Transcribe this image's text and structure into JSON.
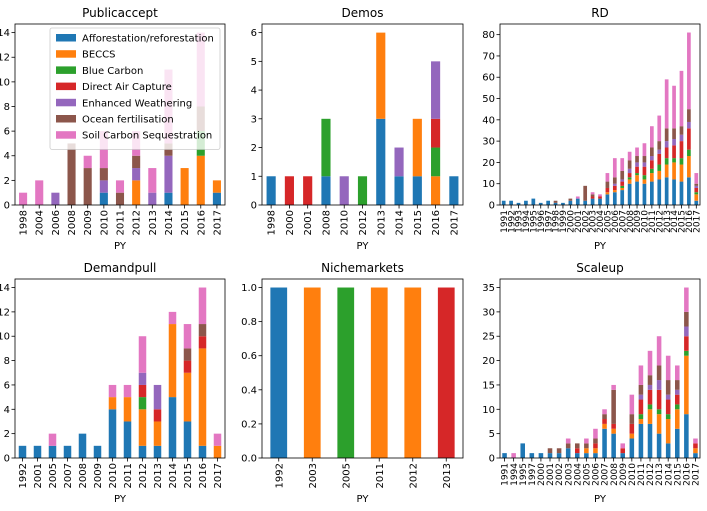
{
  "colors": {
    "Afforestation/reforestation": "#1f77b4",
    "BECCS": "#ff7f0e",
    "Blue Carbon": "#2ca02c",
    "Direct Air Capture": "#d62728",
    "Enhanced Weathering": "#9467bd",
    "Ocean fertilisation": "#8c564b",
    "Soil Carbon Sequestration": "#e377c2"
  },
  "chart_data": [
    {
      "type": "bar",
      "stacked": true,
      "title": "Publicaccept",
      "xlabel": "PY",
      "ylabel": "",
      "ylim": [
        0,
        14.7
      ],
      "yticks": [
        0,
        2,
        4,
        6,
        8,
        10,
        12,
        14
      ],
      "legend": "upper-right",
      "categories": [
        "1998",
        "2004",
        "2006",
        "2008",
        "2009",
        "2010",
        "2011",
        "2012",
        "2013",
        "2014",
        "2015",
        "2016",
        "2017"
      ],
      "series": [
        {
          "name": "Afforestation/reforestation",
          "values": [
            0,
            0,
            0,
            0,
            0,
            1,
            0,
            0,
            0,
            1,
            0,
            0,
            1
          ]
        },
        {
          "name": "BECCS",
          "values": [
            0,
            0,
            0,
            0,
            0,
            0,
            0,
            2,
            0,
            0,
            3,
            4,
            1
          ]
        },
        {
          "name": "Blue Carbon",
          "values": [
            0,
            0,
            0,
            0,
            0,
            0,
            0,
            0,
            0,
            0,
            0,
            2,
            0
          ]
        },
        {
          "name": "Direct Air Capture",
          "values": [
            0,
            0,
            0,
            0,
            0,
            0,
            0,
            0,
            0,
            0,
            0,
            0,
            0
          ]
        },
        {
          "name": "Enhanced Weathering",
          "values": [
            0,
            0,
            1,
            0,
            0,
            1,
            0,
            1,
            1,
            3,
            0,
            0,
            0
          ]
        },
        {
          "name": "Ocean fertilisation",
          "values": [
            0,
            0,
            0,
            5,
            3,
            1,
            1,
            1,
            0,
            1,
            0,
            2,
            0
          ]
        },
        {
          "name": "Soil Carbon Sequestration",
          "values": [
            1,
            2,
            0,
            0,
            1,
            3,
            1,
            2,
            2,
            6,
            0,
            6,
            0
          ]
        }
      ]
    },
    {
      "type": "bar",
      "stacked": true,
      "title": "Demos",
      "xlabel": "PY",
      "ylabel": "",
      "ylim": [
        0,
        6.3
      ],
      "yticks": [
        0,
        1,
        2,
        3,
        4,
        5,
        6
      ],
      "categories": [
        "1998",
        "2000",
        "2001",
        "2008",
        "2010",
        "2012",
        "2013",
        "2014",
        "2015",
        "2016",
        "2017"
      ],
      "series": [
        {
          "name": "Afforestation/reforestation",
          "values": [
            1,
            0,
            0,
            1,
            0,
            0,
            3,
            1,
            1,
            0,
            1
          ]
        },
        {
          "name": "BECCS",
          "values": [
            0,
            0,
            0,
            0,
            0,
            0,
            3,
            0,
            2,
            1,
            0
          ]
        },
        {
          "name": "Blue Carbon",
          "values": [
            0,
            0,
            0,
            2,
            0,
            1,
            0,
            0,
            0,
            1,
            0
          ]
        },
        {
          "name": "Direct Air Capture",
          "values": [
            0,
            1,
            1,
            0,
            0,
            0,
            0,
            0,
            0,
            1,
            0
          ]
        },
        {
          "name": "Enhanced Weathering",
          "values": [
            0,
            0,
            0,
            0,
            1,
            0,
            0,
            1,
            0,
            2,
            0
          ]
        },
        {
          "name": "Ocean fertilisation",
          "values": [
            0,
            0,
            0,
            0,
            0,
            0,
            0,
            0,
            0,
            0,
            0
          ]
        },
        {
          "name": "Soil Carbon Sequestration",
          "values": [
            0,
            0,
            0,
            0,
            0,
            0,
            0,
            0,
            0,
            0,
            0
          ]
        }
      ]
    },
    {
      "type": "bar",
      "stacked": true,
      "title": "RD",
      "xlabel": "PY",
      "ylabel": "",
      "ylim": [
        0,
        85
      ],
      "yticks": [
        0,
        10,
        20,
        30,
        40,
        50,
        60,
        70,
        80
      ],
      "categories": [
        "1991",
        "1992",
        "1993",
        "1994",
        "1995",
        "1996",
        "1997",
        "1998",
        "1999",
        "2000",
        "2001",
        "2002",
        "2003",
        "2004",
        "2005",
        "2006",
        "2007",
        "2008",
        "2009",
        "2010",
        "2011",
        "2012",
        "2013",
        "2014",
        "2015",
        "2016",
        "2017"
      ],
      "series": [
        {
          "name": "Afforestation/reforestation",
          "values": [
            2,
            2,
            1,
            2,
            3,
            1,
            2,
            1,
            1,
            2,
            3,
            2,
            3,
            3,
            5,
            6,
            7,
            10,
            11,
            10,
            11,
            12,
            13,
            12,
            11,
            13,
            2
          ]
        },
        {
          "name": "BECCS",
          "values": [
            0,
            0,
            0,
            0,
            0,
            0,
            0,
            0,
            0,
            0,
            0,
            0,
            0,
            0,
            1,
            1,
            1,
            2,
            3,
            2,
            4,
            4,
            6,
            8,
            8,
            10,
            3
          ]
        },
        {
          "name": "Blue Carbon",
          "values": [
            0,
            0,
            0,
            0,
            0,
            0,
            0,
            0,
            0,
            0,
            0,
            0,
            0,
            0,
            0,
            0,
            1,
            1,
            1,
            2,
            2,
            3,
            3,
            2,
            3,
            3,
            1
          ]
        },
        {
          "name": "Direct Air Capture",
          "values": [
            0,
            0,
            0,
            0,
            0,
            0,
            0,
            0,
            0,
            0,
            0,
            0,
            1,
            1,
            2,
            2,
            2,
            2,
            3,
            4,
            4,
            5,
            5,
            6,
            8,
            10,
            2
          ]
        },
        {
          "name": "Enhanced Weathering",
          "values": [
            0,
            0,
            0,
            0,
            0,
            0,
            0,
            0,
            0,
            0,
            0,
            0,
            0,
            0,
            0,
            1,
            1,
            2,
            2,
            2,
            2,
            2,
            3,
            3,
            3,
            3,
            1
          ]
        },
        {
          "name": "Ocean fertilisation",
          "values": [
            0,
            0,
            0,
            0,
            0,
            0,
            0,
            1,
            0,
            1,
            0,
            7,
            1,
            0,
            3,
            3,
            4,
            4,
            3,
            3,
            4,
            4,
            6,
            5,
            4,
            6,
            1
          ]
        },
        {
          "name": "Soil Carbon Sequestration",
          "values": [
            0,
            0,
            0,
            0,
            0,
            0,
            0,
            0,
            0,
            0,
            1,
            0,
            1,
            1,
            4,
            9,
            6,
            4,
            4,
            6,
            10,
            12,
            23,
            20,
            26,
            36,
            5
          ]
        }
      ]
    },
    {
      "type": "bar",
      "stacked": true,
      "title": "Demandpull",
      "xlabel": "PY",
      "ylabel": "",
      "ylim": [
        0,
        14.7
      ],
      "yticks": [
        0,
        2,
        4,
        6,
        8,
        10,
        12,
        14
      ],
      "categories": [
        "1992",
        "2001",
        "2005",
        "2007",
        "2008",
        "2009",
        "2010",
        "2011",
        "2012",
        "2013",
        "2014",
        "2015",
        "2016",
        "2017"
      ],
      "series": [
        {
          "name": "Afforestation/reforestation",
          "values": [
            1,
            1,
            1,
            1,
            2,
            1,
            4,
            3,
            1,
            1,
            5,
            3,
            1,
            0
          ]
        },
        {
          "name": "BECCS",
          "values": [
            0,
            0,
            0,
            0,
            0,
            0,
            1,
            2,
            3,
            2,
            6,
            4,
            8,
            1
          ]
        },
        {
          "name": "Blue Carbon",
          "values": [
            0,
            0,
            0,
            0,
            0,
            0,
            0,
            0,
            1,
            0,
            0,
            0,
            0,
            0
          ]
        },
        {
          "name": "Direct Air Capture",
          "values": [
            0,
            0,
            0,
            0,
            0,
            0,
            0,
            0,
            1,
            1,
            0,
            1,
            1,
            0
          ]
        },
        {
          "name": "Enhanced Weathering",
          "values": [
            0,
            0,
            0,
            0,
            0,
            0,
            0,
            0,
            1,
            2,
            0,
            0,
            0,
            0
          ]
        },
        {
          "name": "Ocean fertilisation",
          "values": [
            0,
            0,
            0,
            0,
            0,
            0,
            0,
            0,
            0,
            0,
            0,
            1,
            1,
            0
          ]
        },
        {
          "name": "Soil Carbon Sequestration",
          "values": [
            0,
            0,
            1,
            0,
            0,
            0,
            1,
            1,
            3,
            0,
            1,
            2,
            3,
            1
          ]
        }
      ]
    },
    {
      "type": "bar",
      "stacked": true,
      "title": "Nichemarkets",
      "xlabel": "PY",
      "ylabel": "",
      "ylim": [
        0,
        1.05
      ],
      "yticks": [
        0.0,
        0.2,
        0.4,
        0.6,
        0.8,
        1.0
      ],
      "tick_format": "0.0",
      "categories": [
        "1992",
        "2003",
        "2005",
        "2011",
        "2012",
        "2013"
      ],
      "series": [
        {
          "name": "Afforestation/reforestation",
          "values": [
            1,
            0,
            0,
            0,
            0,
            0
          ]
        },
        {
          "name": "BECCS",
          "values": [
            0,
            1,
            0,
            1,
            1,
            0
          ]
        },
        {
          "name": "Blue Carbon",
          "values": [
            0,
            0,
            1,
            0,
            0,
            0
          ]
        },
        {
          "name": "Direct Air Capture",
          "values": [
            0,
            0,
            0,
            0,
            0,
            1
          ]
        },
        {
          "name": "Enhanced Weathering",
          "values": [
            0,
            0,
            0,
            0,
            0,
            0
          ]
        },
        {
          "name": "Ocean fertilisation",
          "values": [
            0,
            0,
            0,
            0,
            0,
            0
          ]
        },
        {
          "name": "Soil Carbon Sequestration",
          "values": [
            0,
            0,
            0,
            0,
            0,
            0
          ]
        }
      ]
    },
    {
      "type": "bar",
      "stacked": true,
      "title": "Scaleup",
      "xlabel": "PY",
      "ylabel": "",
      "ylim": [
        0,
        36.75
      ],
      "yticks": [
        0,
        5,
        10,
        15,
        20,
        25,
        30,
        35
      ],
      "categories": [
        "1991",
        "1994",
        "1995",
        "1997",
        "2000",
        "2001",
        "2002",
        "2003",
        "2004",
        "2005",
        "2006",
        "2007",
        "2008",
        "2009",
        "2010",
        "2011",
        "2012",
        "2013",
        "2014",
        "2015",
        "2016",
        "2017"
      ],
      "series": [
        {
          "name": "Afforestation/reforestation",
          "values": [
            1,
            0,
            3,
            1,
            1,
            1,
            1,
            2,
            1,
            1,
            1,
            6,
            5,
            1,
            4,
            7,
            7,
            5,
            3,
            6,
            9,
            1
          ]
        },
        {
          "name": "BECCS",
          "values": [
            0,
            0,
            0,
            0,
            0,
            0,
            0,
            0,
            0,
            1,
            1,
            1,
            1,
            0,
            1,
            1,
            3,
            4,
            5,
            4,
            12,
            1
          ]
        },
        {
          "name": "Blue Carbon",
          "values": [
            0,
            0,
            0,
            0,
            0,
            0,
            0,
            0,
            0,
            0,
            0,
            0,
            0,
            0,
            0,
            1,
            1,
            1,
            1,
            1,
            1,
            0
          ]
        },
        {
          "name": "Direct Air Capture",
          "values": [
            0,
            0,
            0,
            0,
            0,
            0,
            0,
            0,
            1,
            0,
            1,
            1,
            1,
            1,
            2,
            3,
            3,
            4,
            3,
            2,
            3,
            1
          ]
        },
        {
          "name": "Enhanced Weathering",
          "values": [
            0,
            0,
            0,
            0,
            0,
            0,
            0,
            0,
            0,
            0,
            0,
            0,
            0,
            0,
            0,
            1,
            1,
            2,
            1,
            1,
            2,
            0
          ]
        },
        {
          "name": "Ocean fertilisation",
          "values": [
            0,
            0,
            0,
            0,
            0,
            1,
            1,
            1,
            1,
            1,
            1,
            1,
            7,
            0,
            2,
            2,
            2,
            3,
            3,
            2,
            3,
            0
          ]
        },
        {
          "name": "Soil Carbon Sequestration",
          "values": [
            0,
            1,
            0,
            0,
            0,
            0,
            0,
            1,
            0,
            1,
            2,
            1,
            1,
            1,
            4,
            4,
            5,
            6,
            5,
            3,
            5,
            1
          ]
        }
      ]
    }
  ]
}
